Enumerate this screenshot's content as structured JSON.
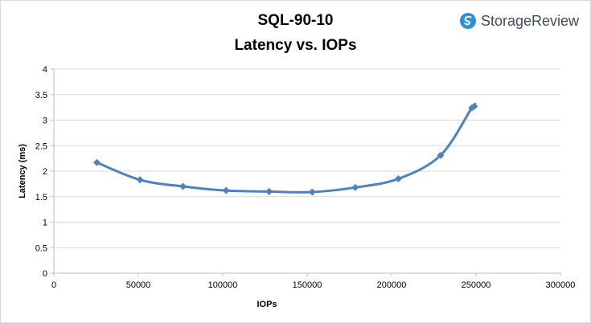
{
  "brand": {
    "name": "StorageReview",
    "logo_icon": "storagereview-logo-icon",
    "logo_color": "#2e8fd8"
  },
  "chart_data": {
    "type": "line",
    "title": "SQL-90-10",
    "subtitle": "Latency vs. IOPs",
    "xlabel": "IOPs",
    "ylabel": "Latency (ms)",
    "xlim": [
      0,
      300000
    ],
    "ylim": [
      0,
      4
    ],
    "x_ticks": [
      0,
      50000,
      100000,
      150000,
      200000,
      250000,
      300000
    ],
    "y_ticks": [
      0,
      0.5,
      1,
      1.5,
      2,
      2.5,
      3,
      3.5,
      4
    ],
    "x_tick_labels": [
      "0",
      "50000",
      "100000",
      "150000",
      "200000",
      "250000",
      "300000"
    ],
    "y_tick_labels": [
      "0",
      "0.5",
      "1",
      "1.5",
      "2",
      "2.5",
      "3",
      "3.5",
      "4"
    ],
    "grid": "horizontal",
    "legend": "none",
    "marker": "diamond",
    "smooth": true,
    "series": [
      {
        "color": "#4f81bd",
        "points": [
          [
            25500,
            2.17
          ],
          [
            51000,
            1.83
          ],
          [
            76500,
            1.7
          ],
          [
            102000,
            1.62
          ],
          [
            127500,
            1.6
          ],
          [
            153000,
            1.59
          ],
          [
            178500,
            1.68
          ],
          [
            204000,
            1.85
          ],
          [
            229000,
            2.31
          ],
          [
            247500,
            3.24
          ],
          [
            249000,
            3.27
          ]
        ]
      }
    ]
  }
}
